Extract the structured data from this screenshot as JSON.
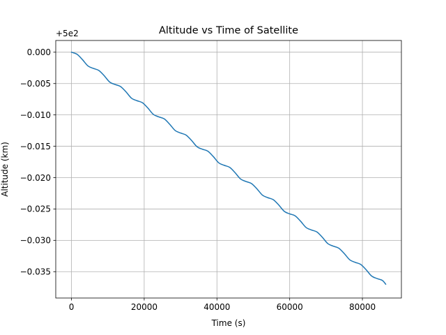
{
  "chart_data": {
    "type": "line",
    "title": "Altitude vs Time of Satellite",
    "xlabel": "Time (s)",
    "ylabel": "Altitude (km)",
    "y_offset_label": "+5e2",
    "y_offset_value": 500,
    "xlim": [
      -4320,
      90720
    ],
    "ylim": [
      -0.0392,
      0.00187
    ],
    "xticks": [
      0,
      20000,
      40000,
      60000,
      80000
    ],
    "xtick_labels": [
      "0",
      "20000",
      "40000",
      "60000",
      "80000"
    ],
    "yticks": [
      0.0,
      -0.005,
      -0.01,
      -0.015,
      -0.02,
      -0.025,
      -0.03,
      -0.035
    ],
    "ytick_labels": [
      "0.000",
      "−0.005",
      "−0.010",
      "−0.015",
      "−0.020",
      "−0.025",
      "−0.030",
      "−0.035"
    ],
    "grid": true,
    "series": [
      {
        "color": "#1f77b4",
        "x": [
          0,
          1500,
          3000,
          4500,
          6000,
          7500,
          9000,
          10500,
          12000,
          13500,
          15000,
          16500,
          18000,
          19500,
          21000,
          22500,
          24000,
          25500,
          27000,
          28500,
          30000,
          31500,
          33000,
          34500,
          36000,
          37500,
          39000,
          40500,
          42000,
          43500,
          45000,
          46500,
          48000,
          49500,
          51000,
          52500,
          54000,
          55500,
          57000,
          58500,
          60000,
          61500,
          63000,
          64500,
          66000,
          67500,
          69000,
          70500,
          72000,
          73500,
          75000,
          76500,
          78000,
          79500,
          81000,
          82500,
          84000,
          85500,
          86400
        ],
        "y": [
          0.0,
          -0.00032,
          -0.00117,
          -0.00217,
          -0.00258,
          -0.0029,
          -0.00375,
          -0.00475,
          -0.00515,
          -0.00547,
          -0.00633,
          -0.00733,
          -0.00773,
          -0.00805,
          -0.0089,
          -0.00991,
          -0.01031,
          -0.01063,
          -0.01148,
          -0.01248,
          -0.01289,
          -0.01321,
          -0.01406,
          -0.01506,
          -0.01547,
          -0.01578,
          -0.01664,
          -0.01764,
          -0.01804,
          -0.01836,
          -0.01922,
          -0.02022,
          -0.02062,
          -0.02094,
          -0.02179,
          -0.02279,
          -0.0232,
          -0.02352,
          -0.02437,
          -0.02537,
          -0.02578,
          -0.02609,
          -0.02695,
          -0.02795,
          -0.02835,
          -0.02867,
          -0.02953,
          -0.03053,
          -0.03093,
          -0.03125,
          -0.0321,
          -0.0331,
          -0.03351,
          -0.03383,
          -0.03468,
          -0.03568,
          -0.03609,
          -0.0364,
          -0.037
        ]
      }
    ]
  }
}
